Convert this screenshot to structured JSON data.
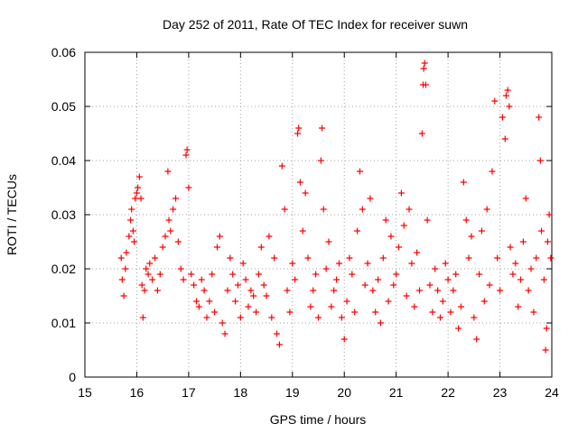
{
  "chart_data": {
    "type": "scatter",
    "title": "Day 252 of 2011, Rate Of TEC Index for receiver suwn",
    "xlabel": "GPS time / hours",
    "ylabel": "ROTI / TECUs",
    "xlim": [
      15,
      24
    ],
    "ylim": [
      0,
      0.06
    ],
    "x_ticks": [
      15,
      16,
      17,
      18,
      19,
      20,
      21,
      22,
      23,
      24
    ],
    "y_ticks": [
      0,
      0.01,
      0.02,
      0.03,
      0.04,
      0.05,
      0.06
    ],
    "x_tick_labels": [
      "15",
      "16",
      "17",
      "18",
      "19",
      "20",
      "21",
      "22",
      "23",
      "24"
    ],
    "y_tick_labels": [
      "0",
      "0.01",
      "0.02",
      "0.03",
      "0.04",
      "0.05",
      "0.06"
    ],
    "grid": true,
    "marker": "plus",
    "color": "#ff0000",
    "series": [
      {
        "points": [
          [
            15.7,
            0.022
          ],
          [
            15.72,
            0.018
          ],
          [
            15.75,
            0.015
          ],
          [
            15.78,
            0.02
          ],
          [
            15.8,
            0.023
          ],
          [
            15.85,
            0.026
          ],
          [
            15.88,
            0.029
          ],
          [
            15.9,
            0.031
          ],
          [
            15.93,
            0.027
          ],
          [
            15.95,
            0.025
          ],
          [
            15.97,
            0.033
          ],
          [
            16.0,
            0.034
          ],
          [
            16.02,
            0.035
          ],
          [
            16.05,
            0.037
          ],
          [
            16.08,
            0.033
          ],
          [
            16.1,
            0.017
          ],
          [
            16.12,
            0.011
          ],
          [
            16.15,
            0.016
          ],
          [
            16.18,
            0.02
          ],
          [
            16.22,
            0.019
          ],
          [
            16.25,
            0.021
          ],
          [
            16.3,
            0.018
          ],
          [
            16.35,
            0.022
          ],
          [
            16.4,
            0.016
          ],
          [
            16.45,
            0.019
          ],
          [
            16.5,
            0.024
          ],
          [
            16.55,
            0.026
          ],
          [
            16.6,
            0.038
          ],
          [
            16.62,
            0.029
          ],
          [
            16.65,
            0.027
          ],
          [
            16.7,
            0.031
          ],
          [
            16.75,
            0.033
          ],
          [
            16.8,
            0.025
          ],
          [
            16.85,
            0.02
          ],
          [
            16.9,
            0.018
          ],
          [
            16.95,
            0.041
          ],
          [
            16.97,
            0.042
          ],
          [
            17.0,
            0.035
          ],
          [
            17.05,
            0.019
          ],
          [
            17.1,
            0.017
          ],
          [
            17.15,
            0.014
          ],
          [
            17.2,
            0.013
          ],
          [
            17.25,
            0.018
          ],
          [
            17.3,
            0.016
          ],
          [
            17.35,
            0.011
          ],
          [
            17.4,
            0.014
          ],
          [
            17.45,
            0.019
          ],
          [
            17.5,
            0.012
          ],
          [
            17.55,
            0.024
          ],
          [
            17.6,
            0.026
          ],
          [
            17.65,
            0.01
          ],
          [
            17.7,
            0.008
          ],
          [
            17.75,
            0.016
          ],
          [
            17.8,
            0.022
          ],
          [
            17.85,
            0.019
          ],
          [
            17.9,
            0.014
          ],
          [
            17.95,
            0.017
          ],
          [
            18.0,
            0.011
          ],
          [
            18.05,
            0.021
          ],
          [
            18.1,
            0.018
          ],
          [
            18.15,
            0.013
          ],
          [
            18.2,
            0.016
          ],
          [
            18.25,
            0.015
          ],
          [
            18.3,
            0.012
          ],
          [
            18.35,
            0.019
          ],
          [
            18.4,
            0.024
          ],
          [
            18.45,
            0.017
          ],
          [
            18.5,
            0.015
          ],
          [
            18.55,
            0.026
          ],
          [
            18.6,
            0.011
          ],
          [
            18.65,
            0.022
          ],
          [
            18.7,
            0.008
          ],
          [
            18.75,
            0.006
          ],
          [
            18.8,
            0.039
          ],
          [
            18.85,
            0.031
          ],
          [
            18.9,
            0.016
          ],
          [
            18.95,
            0.012
          ],
          [
            19.0,
            0.021
          ],
          [
            19.05,
            0.018
          ],
          [
            19.1,
            0.045
          ],
          [
            19.12,
            0.046
          ],
          [
            19.15,
            0.036
          ],
          [
            19.2,
            0.027
          ],
          [
            19.25,
            0.034
          ],
          [
            19.3,
            0.022
          ],
          [
            19.35,
            0.013
          ],
          [
            19.4,
            0.016
          ],
          [
            19.45,
            0.019
          ],
          [
            19.5,
            0.011
          ],
          [
            19.55,
            0.04
          ],
          [
            19.57,
            0.046
          ],
          [
            19.6,
            0.031
          ],
          [
            19.65,
            0.02
          ],
          [
            19.7,
            0.025
          ],
          [
            19.75,
            0.013
          ],
          [
            19.8,
            0.016
          ],
          [
            19.85,
            0.018
          ],
          [
            19.9,
            0.021
          ],
          [
            19.95,
            0.011
          ],
          [
            20.0,
            0.007
          ],
          [
            20.05,
            0.014
          ],
          [
            20.1,
            0.022
          ],
          [
            20.15,
            0.019
          ],
          [
            20.2,
            0.012
          ],
          [
            20.25,
            0.027
          ],
          [
            20.3,
            0.038
          ],
          [
            20.35,
            0.031
          ],
          [
            20.4,
            0.017
          ],
          [
            20.45,
            0.021
          ],
          [
            20.5,
            0.033
          ],
          [
            20.55,
            0.016
          ],
          [
            20.6,
            0.012
          ],
          [
            20.65,
            0.018
          ],
          [
            20.7,
            0.01
          ],
          [
            20.75,
            0.022
          ],
          [
            20.8,
            0.029
          ],
          [
            20.85,
            0.014
          ],
          [
            20.9,
            0.026
          ],
          [
            20.95,
            0.017
          ],
          [
            21.0,
            0.019
          ],
          [
            21.05,
            0.024
          ],
          [
            21.1,
            0.034
          ],
          [
            21.15,
            0.028
          ],
          [
            21.2,
            0.015
          ],
          [
            21.25,
            0.031
          ],
          [
            21.3,
            0.021
          ],
          [
            21.35,
            0.013
          ],
          [
            21.4,
            0.023
          ],
          [
            21.45,
            0.016
          ],
          [
            21.5,
            0.045
          ],
          [
            21.52,
            0.054
          ],
          [
            21.53,
            0.057
          ],
          [
            21.55,
            0.058
          ],
          [
            21.57,
            0.054
          ],
          [
            21.6,
            0.029
          ],
          [
            21.65,
            0.017
          ],
          [
            21.7,
            0.012
          ],
          [
            21.75,
            0.02
          ],
          [
            21.8,
            0.016
          ],
          [
            21.85,
            0.011
          ],
          [
            21.9,
            0.014
          ],
          [
            21.95,
            0.021
          ],
          [
            22.0,
            0.018
          ],
          [
            22.05,
            0.012
          ],
          [
            22.1,
            0.016
          ],
          [
            22.15,
            0.019
          ],
          [
            22.2,
            0.009
          ],
          [
            22.25,
            0.013
          ],
          [
            22.3,
            0.036
          ],
          [
            22.35,
            0.029
          ],
          [
            22.4,
            0.022
          ],
          [
            22.45,
            0.026
          ],
          [
            22.5,
            0.011
          ],
          [
            22.55,
            0.007
          ],
          [
            22.6,
            0.019
          ],
          [
            22.65,
            0.027
          ],
          [
            22.7,
            0.014
          ],
          [
            22.75,
            0.031
          ],
          [
            22.8,
            0.017
          ],
          [
            22.85,
            0.038
          ],
          [
            22.9,
            0.051
          ],
          [
            22.95,
            0.022
          ],
          [
            23.0,
            0.016
          ],
          [
            23.05,
            0.048
          ],
          [
            23.1,
            0.044
          ],
          [
            23.12,
            0.052
          ],
          [
            23.15,
            0.053
          ],
          [
            23.18,
            0.05
          ],
          [
            23.2,
            0.024
          ],
          [
            23.25,
            0.019
          ],
          [
            23.3,
            0.021
          ],
          [
            23.35,
            0.013
          ],
          [
            23.4,
            0.018
          ],
          [
            23.45,
            0.025
          ],
          [
            23.5,
            0.033
          ],
          [
            23.55,
            0.016
          ],
          [
            23.6,
            0.02
          ],
          [
            23.65,
            0.012
          ],
          [
            23.7,
            0.022
          ],
          [
            23.75,
            0.048
          ],
          [
            23.78,
            0.04
          ],
          [
            23.8,
            0.027
          ],
          [
            23.85,
            0.018
          ],
          [
            23.88,
            0.005
          ],
          [
            23.9,
            0.009
          ],
          [
            23.92,
            0.025
          ],
          [
            23.95,
            0.03
          ],
          [
            23.98,
            0.022
          ]
        ]
      }
    ]
  }
}
